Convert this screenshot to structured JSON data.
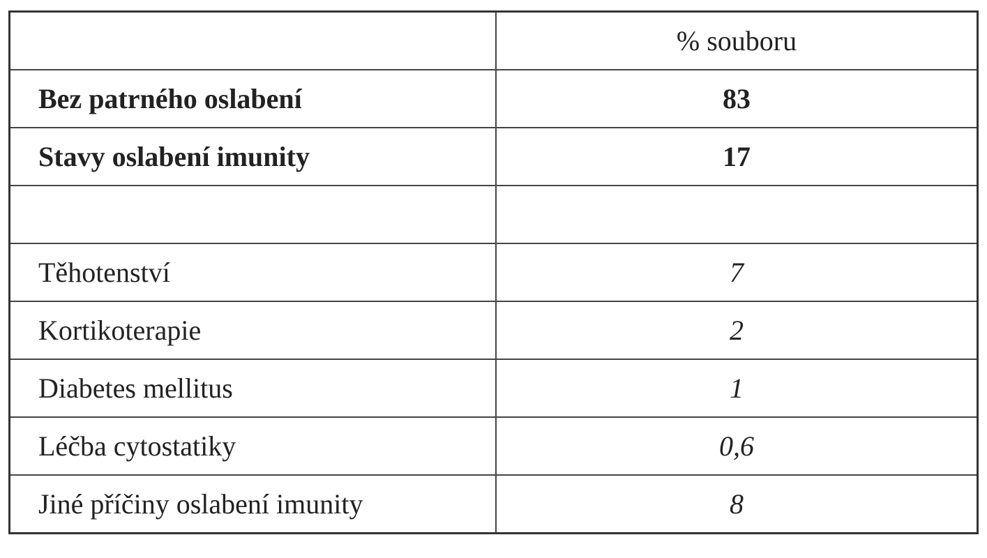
{
  "table": {
    "header": [
      "% souboru"
    ],
    "summary_rows": [
      [
        "Bez patrného oslabení",
        "83"
      ],
      [
        "Stavy oslabení imunity",
        "17"
      ]
    ],
    "detail_rows": [
      [
        "Těhotenství",
        "7"
      ],
      [
        "Kortikoterapie",
        "2"
      ],
      [
        "Diabetes mellitus",
        "1"
      ],
      [
        "Léčba cytostatiky",
        "0,6"
      ],
      [
        "Jiné příčiny oslabení imunity",
        "8"
      ]
    ]
  }
}
